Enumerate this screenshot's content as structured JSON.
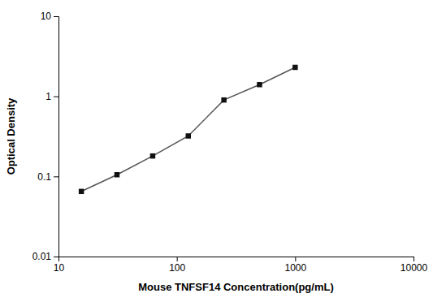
{
  "chart_data": {
    "type": "line",
    "x": [
      15.6,
      31.2,
      62.5,
      125,
      250,
      500,
      1000
    ],
    "values": [
      0.065,
      0.105,
      0.18,
      0.32,
      0.9,
      1.4,
      2.3
    ],
    "xlabel": "Mouse TNFSF14 Concentration(pg/mL)",
    "ylabel": "Optical Density",
    "xlim": [
      10,
      10000
    ],
    "ylim": [
      0.01,
      10
    ],
    "xticks": [
      10,
      100,
      1000,
      10000
    ],
    "yticks": [
      0.01,
      0.1,
      1,
      10
    ],
    "log": true,
    "grid": false,
    "color": "#555555",
    "colors": [
      "#111111",
      "#111111",
      "#111111",
      "#111111",
      "#111111",
      "#111111",
      "#111111"
    ],
    "marker": "square"
  }
}
